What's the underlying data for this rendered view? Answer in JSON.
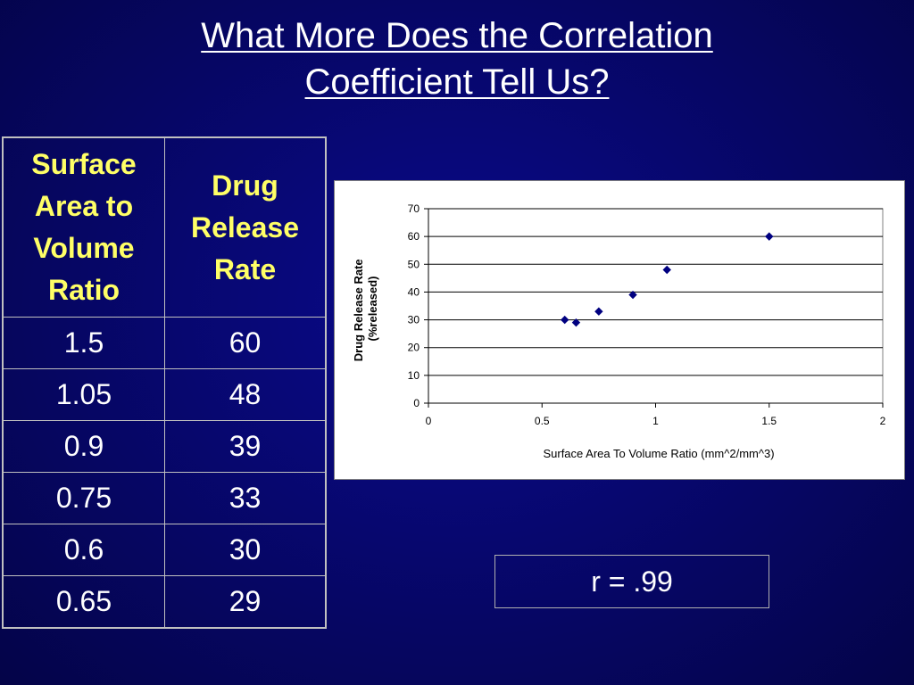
{
  "title": {
    "line1": "What More Does the Correlation",
    "line2": "Coefficient Tell Us?"
  },
  "table": {
    "headers": [
      "Surface Area to Volume Ratio",
      "Drug Release Rate"
    ],
    "rows": [
      [
        "1.5",
        "60"
      ],
      [
        "1.05",
        "48"
      ],
      [
        "0.9",
        "39"
      ],
      [
        "0.75",
        "33"
      ],
      [
        "0.6",
        "30"
      ],
      [
        "0.65",
        "29"
      ]
    ]
  },
  "correlation": {
    "label": "r = .99"
  },
  "chart_data": {
    "type": "scatter",
    "title": "",
    "xlabel": "Surface Area To Volume Ratio (mm^2/mm^3)",
    "ylabel_lines": [
      "Drug Release Rate",
      "(%released)"
    ],
    "xlim": [
      0,
      2
    ],
    "ylim": [
      0,
      70
    ],
    "xticks": [
      0,
      0.5,
      1,
      1.5,
      2
    ],
    "xtick_labels": [
      "0",
      "0.5",
      "1",
      "1.5",
      "2"
    ],
    "yticks": [
      0,
      10,
      20,
      30,
      40,
      50,
      60,
      70
    ],
    "ytick_labels": [
      "0",
      "10",
      "20",
      "30",
      "40",
      "50",
      "60",
      "70"
    ],
    "grid": "horizontal",
    "marker": "diamond",
    "marker_color": "#000080",
    "points": [
      {
        "x": 1.5,
        "y": 60
      },
      {
        "x": 1.05,
        "y": 48
      },
      {
        "x": 0.9,
        "y": 39
      },
      {
        "x": 0.75,
        "y": 33
      },
      {
        "x": 0.6,
        "y": 30
      },
      {
        "x": 0.65,
        "y": 29
      }
    ]
  }
}
